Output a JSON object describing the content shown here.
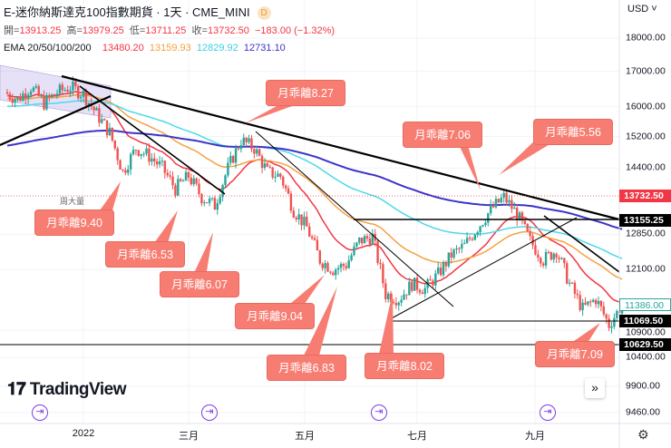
{
  "header": {
    "title": "E-迷你納斯達克100指數期貨 · 1天 · CME_MINI",
    "badge": "D",
    "ohlc": {
      "open_label": "開=",
      "open": "13913.25",
      "high_label": "高=",
      "high": "13979.25",
      "low_label": "低=",
      "low": "13711.25",
      "close_label": "收=",
      "close": "13732.50",
      "change": "−183.00 (−1.32%)"
    },
    "ema": {
      "label": "EMA 20/50/100/200",
      "v20": "13480.20",
      "v50": "13159.93",
      "v100": "12829.92",
      "v200": "12731.10"
    }
  },
  "colors": {
    "ema20": "#f23645",
    "ema50": "#f5a142",
    "ema100": "#4dd9e8",
    "ema200": "#3c34c8",
    "up": "#26a69a",
    "down": "#ef5350",
    "callout": "#f77d72"
  },
  "price_axis": {
    "currency": "USD",
    "ticks": [
      "18000.00",
      "17000.00",
      "16000.00",
      "15200.00",
      "14400.00",
      "12850.00",
      "12100.00",
      "10900.00",
      "10400.00",
      "9900.00",
      "9460.00"
    ],
    "tags": [
      {
        "value": "13732.50",
        "color": "#f23645"
      },
      {
        "value": "13155.25",
        "color": "#000000"
      },
      {
        "value": "11386.00",
        "color": "#26a69a"
      },
      {
        "value": "11069.50",
        "color": "#000000"
      },
      {
        "value": "10629.50",
        "color": "#000000"
      }
    ]
  },
  "time_axis": {
    "labels": [
      "2022",
      "三月",
      "五月",
      "七月",
      "九月"
    ]
  },
  "annotations": {
    "small_note": "周大量",
    "callouts": [
      "月乖離8.27",
      "月乖離9.40",
      "月乖離6.53",
      "月乖離6.07",
      "月乖離9.04",
      "月乖離6.83",
      "月乖離7.06",
      "月乖離5.56",
      "月乖離8.02",
      "月乖離7.09"
    ]
  },
  "logo": "TradingView",
  "chart_data": {
    "type": "candlestick",
    "scale": "log",
    "weekly_closes": [
      [
        "2021-11-22",
        16400
      ],
      [
        "2021-11-29",
        16200
      ],
      [
        "2021-12-06",
        16550
      ],
      [
        "2021-12-13",
        16100
      ],
      [
        "2021-12-20",
        16400
      ],
      [
        "2021-12-27",
        16550
      ],
      [
        "2022-01-03",
        16350
      ],
      [
        "2022-01-10",
        15800
      ],
      [
        "2022-01-17",
        15300
      ],
      [
        "2022-01-24",
        14300
      ],
      [
        "2022-01-31",
        14900
      ],
      [
        "2022-02-07",
        14700
      ],
      [
        "2022-02-14",
        14400
      ],
      [
        "2022-02-21",
        13900
      ],
      [
        "2022-02-28",
        14200
      ],
      [
        "2022-03-07",
        13700
      ],
      [
        "2022-03-14",
        13500
      ],
      [
        "2022-03-21",
        14400
      ],
      [
        "2022-03-28",
        15100
      ],
      [
        "2022-04-04",
        14900
      ],
      [
        "2022-04-11",
        14300
      ],
      [
        "2022-04-18",
        14200
      ],
      [
        "2022-04-25",
        13400
      ],
      [
        "2022-05-02",
        13000
      ],
      [
        "2022-05-09",
        12300
      ],
      [
        "2022-05-16",
        12100
      ],
      [
        "2022-05-23",
        12200
      ],
      [
        "2022-05-30",
        12700
      ],
      [
        "2022-06-06",
        12800
      ],
      [
        "2022-06-13",
        11600
      ],
      [
        "2022-06-20",
        11500
      ],
      [
        "2022-06-27",
        11800
      ],
      [
        "2022-07-04",
        11700
      ],
      [
        "2022-07-11",
        12000
      ],
      [
        "2022-07-18",
        12400
      ],
      [
        "2022-07-25",
        12600
      ],
      [
        "2022-08-01",
        13000
      ],
      [
        "2022-08-08",
        13400
      ],
      [
        "2022-08-15",
        13700
      ],
      [
        "2022-08-22",
        13300
      ],
      [
        "2022-08-29",
        12700
      ],
      [
        "2022-09-05",
        12300
      ],
      [
        "2022-09-12",
        12500
      ],
      [
        "2022-09-19",
        11800
      ],
      [
        "2022-09-26",
        11300
      ],
      [
        "2022-10-03",
        11500
      ],
      [
        "2022-10-10",
        11000
      ],
      [
        "2022-10-17",
        11386
      ]
    ],
    "horizontal_levels": [
      13155.25,
      11069.5,
      10629.5
    ]
  }
}
